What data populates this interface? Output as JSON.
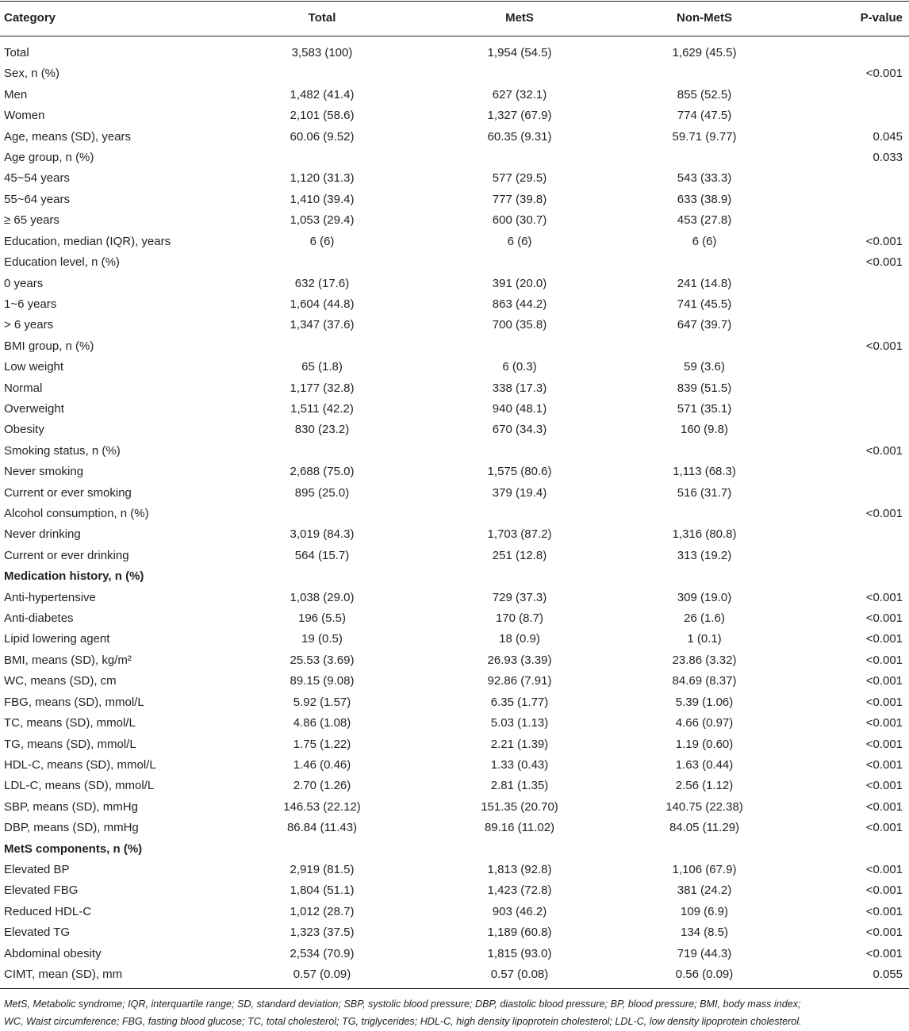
{
  "table": {
    "header": [
      "Category",
      "Total",
      "MetS",
      "Non-MetS",
      "P-value"
    ],
    "rows": [
      [
        "Total",
        "3,583 (100)",
        "1,954 (54.5)",
        "1,629 (45.5)",
        null
      ],
      [
        "Sex, n (%)",
        null,
        null,
        null,
        "<0.001"
      ],
      [
        "Men",
        "1,482 (41.4)",
        "627 (32.1)",
        "855 (52.5)",
        null
      ],
      [
        "Women",
        "2,101 (58.6)",
        "1,327 (67.9)",
        "774 (47.5)",
        null
      ],
      [
        "Age, means (SD), years",
        "60.06 (9.52)",
        "60.35 (9.31)",
        "59.71 (9.77)",
        "0.045"
      ],
      [
        "Age group, n (%)",
        null,
        null,
        null,
        "0.033"
      ],
      [
        "45~54 years",
        "1,120 (31.3)",
        "577 (29.5)",
        "543 (33.3)",
        null
      ],
      [
        "55~64 years",
        "1,410 (39.4)",
        "777 (39.8)",
        "633 (38.9)",
        null
      ],
      [
        "≥ 65 years",
        "1,053 (29.4)",
        "600 (30.7)",
        "453 (27.8)",
        null
      ],
      [
        "Education, median (IQR), years",
        "6 (6)",
        "6 (6)",
        "6 (6)",
        "<0.001"
      ],
      [
        "Education level, n (%)",
        null,
        null,
        null,
        "<0.001"
      ],
      [
        "0 years",
        "632 (17.6)",
        "391 (20.0)",
        "241 (14.8)",
        null
      ],
      [
        "1~6 years",
        "1,604 (44.8)",
        "863 (44.2)",
        "741 (45.5)",
        null
      ],
      [
        "> 6 years",
        "1,347 (37.6)",
        "700 (35.8)",
        "647 (39.7)",
        null
      ],
      [
        "BMI group, n (%)",
        null,
        null,
        null,
        "<0.001"
      ],
      [
        "Low weight",
        "65 (1.8)",
        "6 (0.3)",
        "59 (3.6)",
        null
      ],
      [
        "Normal",
        "1,177 (32.8)",
        "338 (17.3)",
        "839 (51.5)",
        null
      ],
      [
        "Overweight",
        "1,511 (42.2)",
        "940 (48.1)",
        "571 (35.1)",
        null
      ],
      [
        "Obesity",
        "830 (23.2)",
        "670 (34.3)",
        "160 (9.8)",
        null
      ],
      [
        "Smoking status, n (%)",
        null,
        null,
        null,
        "<0.001"
      ],
      [
        "Never smoking",
        "2,688 (75.0)",
        "1,575 (80.6)",
        "1,113 (68.3)",
        null
      ],
      [
        "Current or ever smoking",
        "895 (25.0)",
        "379 (19.4)",
        "516 (31.7)",
        null
      ],
      [
        "Alcohol consumption, n (%)",
        null,
        null,
        null,
        "<0.001"
      ],
      [
        "Never drinking",
        "3,019 (84.3)",
        "1,703 (87.2)",
        "1,316 (80.8)",
        null
      ],
      [
        "Current or ever drinking",
        "564 (15.7)",
        "251 (12.8)",
        "313 (19.2)",
        null
      ],
      [
        "Medication history, n (%)",
        null,
        null,
        null,
        null
      ],
      [
        "Anti-hypertensive",
        "1,038 (29.0)",
        "729 (37.3)",
        "309 (19.0)",
        "<0.001"
      ],
      [
        "Anti-diabetes",
        "196 (5.5)",
        "170 (8.7)",
        "26 (1.6)",
        "<0.001"
      ],
      [
        "Lipid lowering agent",
        "19 (0.5)",
        "18 (0.9)",
        "1 (0.1)",
        "<0.001"
      ],
      [
        "BMI, means (SD), kg/m²",
        "25.53 (3.69)",
        "26.93 (3.39)",
        "23.86 (3.32)",
        "<0.001"
      ],
      [
        "WC, means (SD), cm",
        "89.15 (9.08)",
        "92.86 (7.91)",
        "84.69 (8.37)",
        "<0.001"
      ],
      [
        "FBG, means (SD), mmol/L",
        "5.92 (1.57)",
        "6.35 (1.77)",
        "5.39 (1.06)",
        "<0.001"
      ],
      [
        "TC, means (SD), mmol/L",
        "4.86 (1.08)",
        "5.03 (1.13)",
        "4.66 (0.97)",
        "<0.001"
      ],
      [
        "TG, means (SD), mmol/L",
        "1.75 (1.22)",
        "2.21 (1.39)",
        "1.19 (0.60)",
        "<0.001"
      ],
      [
        "HDL-C, means (SD), mmol/L",
        "1.46 (0.46)",
        "1.33 (0.43)",
        "1.63 (0.44)",
        "<0.001"
      ],
      [
        "LDL-C, means (SD), mmol/L",
        "2.70 (1.26)",
        "2.81 (1.35)",
        "2.56 (1.12)",
        "<0.001"
      ],
      [
        "SBP, means (SD), mmHg",
        "146.53 (22.12)",
        "151.35 (20.70)",
        "140.75 (22.38)",
        "<0.001"
      ],
      [
        "DBP, means (SD), mmHg",
        "86.84 (11.43)",
        "89.16 (11.02)",
        "84.05 (11.29)",
        "<0.001"
      ],
      [
        "MetS components, n (%)",
        null,
        null,
        null,
        null
      ],
      [
        "Elevated BP",
        "2,919 (81.5)",
        "1,813 (92.8)",
        "1,106 (67.9)",
        "<0.001"
      ],
      [
        "Elevated FBG",
        "1,804 (51.1)",
        "1,423 (72.8)",
        "381 (24.2)",
        "<0.001"
      ],
      [
        "Reduced HDL-C",
        "1,012 (28.7)",
        "903 (46.2)",
        "109 (6.9)",
        "<0.001"
      ],
      [
        "Elevated TG",
        "1,323 (37.5)",
        "1,189 (60.8)",
        "134 (8.5)",
        "<0.001"
      ],
      [
        "Abdominal obesity",
        "2,534 (70.9)",
        "1,815 (93.0)",
        "719 (44.3)",
        "<0.001"
      ],
      [
        "CIMT, mean (SD), mm",
        "0.57 (0.09)",
        "0.57 (0.08)",
        "0.56 (0.09)",
        "0.055"
      ]
    ],
    "footnote": [
      "MetS, Metabolic syndrome; IQR, interquartile range; SD, standard deviation; SBP, systolic blood pressure; DBP, diastolic blood pressure; BP, blood pressure; BMI, body mass index;",
      "WC, Waist circumference; FBG, fasting blood glucose; TC, total cholesterol; TG, triglycerides; HDL-C, high density lipoprotein cholesterol; LDL-C, low density lipoprotein cholesterol."
    ]
  }
}
